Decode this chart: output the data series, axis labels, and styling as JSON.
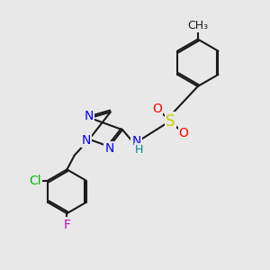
{
  "background_color": "#e8e8e8",
  "atom_colors": {
    "N": "#0000ff",
    "S": "#cccc00",
    "O": "#ff0000",
    "Cl": "#00bb00",
    "F": "#cc00cc",
    "H": "#008888"
  },
  "bond_lw": 1.5,
  "font_size": 10,
  "xlim": [
    0,
    10
  ],
  "ylim": [
    0,
    10
  ]
}
